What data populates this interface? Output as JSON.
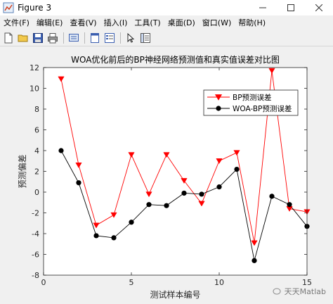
{
  "window": {
    "title": "Figure 3"
  },
  "menu": {
    "items": [
      "文件(F)",
      "编辑(E)",
      "查看(V)",
      "插入(I)",
      "工具(T)",
      "桌面(D)",
      "窗口(W)",
      "帮助(H)"
    ]
  },
  "toolbar": {
    "icons": [
      "new-file-icon",
      "open-folder-icon",
      "save-icon",
      "print-icon",
      "print-preview-icon",
      "dock-icon",
      "property-editor-icon",
      "pointer-icon",
      "plot-browser-icon"
    ]
  },
  "watermark": {
    "text": "天天Matlab"
  },
  "colors": {
    "bp": "#ff0000",
    "woa_bp": "#000000",
    "axes_bg": "#ffffff",
    "figure_bg": "#f0f0f0"
  },
  "chart_data": {
    "type": "line",
    "title": "WOA优化前后的BP神经网络预测值和真实值误差对比图",
    "xlabel": "测试样本编号",
    "ylabel": "预测偏差",
    "xlim": [
      0,
      15
    ],
    "ylim": [
      -8,
      12
    ],
    "xticks": [
      0,
      5,
      10,
      15
    ],
    "yticks": [
      -8,
      -6,
      -4,
      -2,
      0,
      2,
      4,
      6,
      8,
      10,
      12
    ],
    "grid": false,
    "legend_position": "top-right",
    "x": [
      1,
      2,
      3,
      4,
      5,
      6,
      7,
      8,
      9,
      10,
      11,
      12,
      13,
      14,
      15
    ],
    "series": [
      {
        "name": "BP预测误差",
        "marker": "triangle-down",
        "color": "#ff0000",
        "values": [
          10.9,
          2.6,
          -3.2,
          -2.2,
          3.6,
          -0.2,
          3.6,
          1.1,
          -1.1,
          3.0,
          3.8,
          -4.9,
          11.7,
          -1.6,
          -1.9
        ]
      },
      {
        "name": "WOA-BP预测误差",
        "marker": "circle",
        "color": "#000000",
        "values": [
          4.0,
          0.9,
          -4.2,
          -4.4,
          -2.9,
          -1.2,
          -1.3,
          -0.1,
          -0.2,
          0.5,
          2.2,
          -6.6,
          -0.4,
          -1.2,
          -3.3
        ]
      }
    ]
  }
}
